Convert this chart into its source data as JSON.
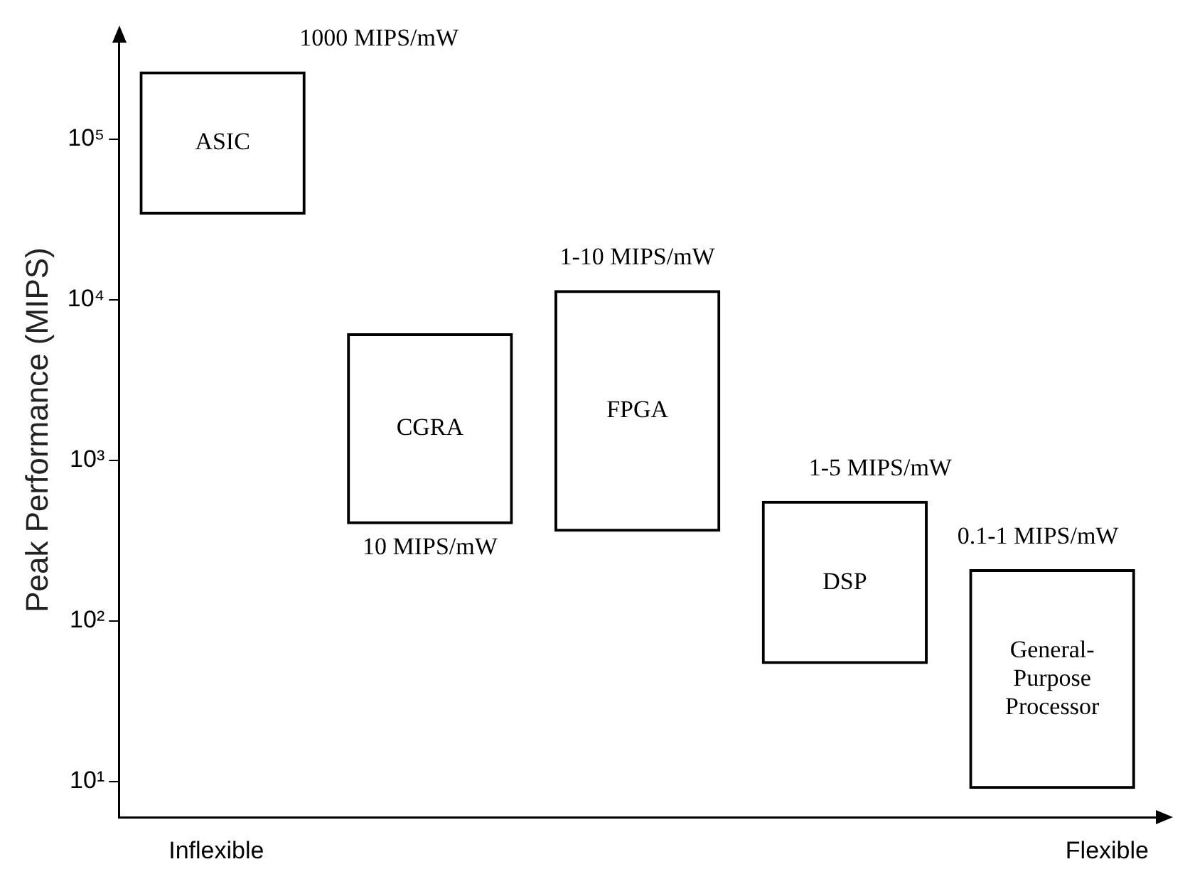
{
  "chart_data": {
    "type": "bar",
    "ylabel": "Peak Performance (MIPS)",
    "categories": [
      "ASIC",
      "CGRA",
      "FPGA",
      "DSP",
      "General-Purpose Processor"
    ],
    "base": [
      34000,
      400,
      360,
      54,
      9
    ],
    "values": [
      231000,
      5800,
      11140,
      506,
      201
    ],
    "color": "#000000",
    "log": true,
    "ylim": [
      6,
      400000
    ],
    "yticks": [
      {
        "value": 10,
        "label": "10¹"
      },
      {
        "value": 100,
        "label": "10²"
      },
      {
        "value": 1000,
        "label": "10³"
      },
      {
        "value": 10000,
        "label": "10⁴"
      },
      {
        "value": 100000,
        "label": "10⁵"
      }
    ],
    "tick_labels": "y",
    "grid": false,
    "legend": false,
    "annotations": [
      "1000 MIPS/mW",
      "10 MIPS/mW",
      "1-10 MIPS/mW",
      "1-5 MIPS/mW",
      "0.1-1 MIPS/mW",
      "Inflexible",
      "Flexible"
    ]
  }
}
